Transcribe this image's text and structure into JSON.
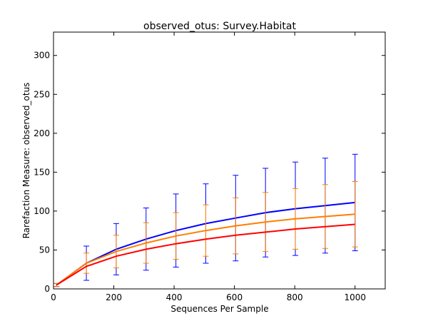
{
  "chart_data": {
    "type": "line",
    "title": "observed_otus: Survey.Habitat",
    "xlabel": "Sequences Per Sample",
    "ylabel": "Rarefaction Measure: observed_otus",
    "xlim": [
      0,
      1100
    ],
    "ylim": [
      0,
      330
    ],
    "xticks": [
      0,
      200,
      400,
      600,
      800,
      1000
    ],
    "yticks": [
      0,
      50,
      100,
      150,
      200,
      250,
      300
    ],
    "grid": false,
    "legend": "none",
    "x": [
      10,
      109,
      208,
      307,
      406,
      505,
      604,
      703,
      802,
      901,
      1000
    ],
    "series": [
      {
        "color": "#0000ff",
        "values": [
          5,
          33,
          51,
          64,
          75,
          84,
          91,
          98,
          103,
          107,
          111
        ],
        "err": [
          2,
          22,
          33,
          40,
          47,
          51,
          55,
          57,
          60,
          61,
          62
        ]
      },
      {
        "color": "#ff7f00",
        "values": [
          5,
          33,
          48,
          59,
          68,
          75,
          81,
          86,
          90,
          93,
          96
        ],
        "err": [
          2,
          13,
          21,
          26,
          30,
          33,
          36,
          38,
          39,
          41,
          42
        ]
      },
      {
        "color": "#ff0000",
        "values": [
          5,
          29,
          42,
          51,
          58,
          64,
          69,
          73,
          77,
          80,
          83
        ],
        "err": [
          0,
          0,
          0,
          0,
          0,
          0,
          0,
          0,
          0,
          0,
          0
        ]
      }
    ]
  }
}
